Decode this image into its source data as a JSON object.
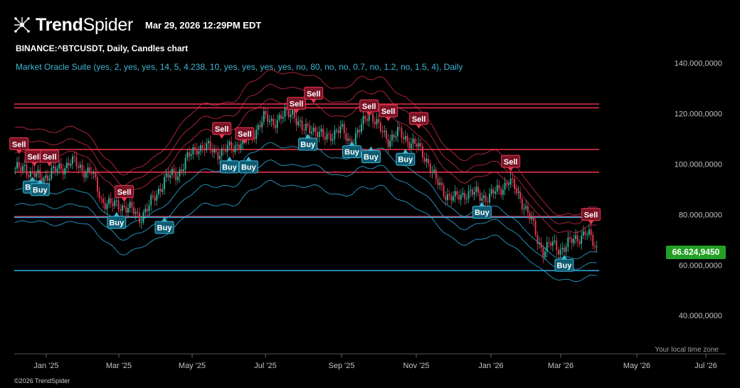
{
  "header": {
    "brand_bold": "Trend",
    "brand_light": "Spider",
    "timestamp": "Mar 29, 2026 12:29PM EDT",
    "symbol_line": "BINANCE:^BTCUSDT, Daily, Candles chart",
    "indicator_line": "Market Oracle Suite (yes, 2, yes, yes, 14, 5, 4.238, 10, yes, yes, yes, yes, no, 80, no, no, 0.7, no, 1.2, no, 1.5, 4), Daily"
  },
  "footer": {
    "timezone_label": "Your local time zone",
    "copyright": "©2026 TrendSpider"
  },
  "colors": {
    "background": "#000000",
    "up": "#2fb7a0",
    "down": "#e5394f",
    "resistance": "#e0304a",
    "support": "#2aa6d4",
    "price_badge": "#23a025"
  },
  "chart_data": {
    "type": "candlestick",
    "y_ticks": [
      "140.000,0000",
      "120.000,0000",
      "100.000,0000",
      "80.000,0000",
      "60.000,0000",
      "40.000,0000"
    ],
    "y_tick_values": [
      140000,
      120000,
      100000,
      80000,
      60000,
      40000
    ],
    "ylim": [
      35000,
      150000
    ],
    "x_ticks": [
      "Jan '25",
      "Mar '25",
      "May '25",
      "Jul '25",
      "Sep '25",
      "Nov '25",
      "Jan '26",
      "Mar '26",
      "May '26",
      "Jul '26"
    ],
    "last_price": "66.624,9450",
    "resistance_levels": [
      123800,
      122300,
      105800,
      96800,
      79200
    ],
    "support_levels": [
      78900,
      57800
    ],
    "close_path": [
      [
        0,
        97000
      ],
      [
        5,
        99500
      ],
      [
        8,
        96000
      ],
      [
        13,
        94500
      ],
      [
        18,
        96000
      ],
      [
        24,
        98500
      ],
      [
        29,
        101000
      ],
      [
        33,
        99000
      ],
      [
        40,
        96500
      ],
      [
        45,
        86000
      ],
      [
        50,
        83500
      ],
      [
        55,
        84000
      ],
      [
        62,
        81000
      ],
      [
        65,
        79000
      ],
      [
        70,
        83000
      ],
      [
        78,
        94000
      ],
      [
        85,
        96500
      ],
      [
        92,
        104000
      ],
      [
        95,
        107000
      ],
      [
        102,
        106000
      ],
      [
        108,
        104500
      ],
      [
        115,
        107500
      ],
      [
        123,
        111000
      ],
      [
        130,
        118000
      ],
      [
        134,
        117000
      ],
      [
        140,
        118500
      ],
      [
        145,
        121500
      ],
      [
        150,
        113000
      ],
      [
        155,
        115000
      ],
      [
        161,
        110000
      ],
      [
        165,
        112000
      ],
      [
        170,
        113500
      ],
      [
        176,
        108500
      ],
      [
        180,
        113000
      ],
      [
        185,
        121500
      ],
      [
        190,
        114000
      ],
      [
        195,
        110000
      ],
      [
        200,
        112000
      ],
      [
        205,
        110000
      ],
      [
        210,
        107000
      ],
      [
        216,
        101000
      ],
      [
        220,
        93000
      ],
      [
        225,
        88500
      ],
      [
        230,
        86000
      ],
      [
        236,
        89000
      ],
      [
        243,
        87500
      ],
      [
        248,
        87000
      ],
      [
        253,
        90000
      ],
      [
        258,
        93500
      ],
      [
        262,
        89000
      ],
      [
        266,
        84000
      ],
      [
        270,
        77000
      ],
      [
        273,
        70000
      ],
      [
        276,
        66000
      ],
      [
        280,
        68000
      ],
      [
        285,
        66500
      ],
      [
        290,
        68500
      ],
      [
        294,
        71000
      ],
      [
        298,
        73000
      ],
      [
        301,
        70000
      ],
      [
        304,
        66600
      ]
    ],
    "signals": [
      {
        "type": "Sell",
        "i": 2,
        "price": 104000
      },
      {
        "type": "Sell",
        "i": 10,
        "price": 99000
      },
      {
        "type": "Sell",
        "i": 18,
        "price": 99000
      },
      {
        "type": "Buy",
        "i": 9,
        "price": 95000
      },
      {
        "type": "Buy",
        "i": 13,
        "price": 94000
      },
      {
        "type": "Sell",
        "i": 57,
        "price": 85000
      },
      {
        "type": "Buy",
        "i": 53,
        "price": 81000
      },
      {
        "type": "Buy",
        "i": 78,
        "price": 79000
      },
      {
        "type": "Sell",
        "i": 108,
        "price": 110000
      },
      {
        "type": "Sell",
        "i": 120,
        "price": 108000
      },
      {
        "type": "Buy",
        "i": 112,
        "price": 103000
      },
      {
        "type": "Buy",
        "i": 122,
        "price": 103000
      },
      {
        "type": "Sell",
        "i": 147,
        "price": 120000
      },
      {
        "type": "Sell",
        "i": 156,
        "price": 124000
      },
      {
        "type": "Buy",
        "i": 153,
        "price": 112000
      },
      {
        "type": "Buy",
        "i": 176,
        "price": 109000
      },
      {
        "type": "Buy",
        "i": 186,
        "price": 107000
      },
      {
        "type": "Sell",
        "i": 185,
        "price": 119000
      },
      {
        "type": "Sell",
        "i": 195,
        "price": 117000
      },
      {
        "type": "Sell",
        "i": 211,
        "price": 114000
      },
      {
        "type": "Buy",
        "i": 204,
        "price": 106000
      },
      {
        "type": "Buy",
        "i": 244,
        "price": 85000
      },
      {
        "type": "Sell",
        "i": 259,
        "price": 97000
      },
      {
        "type": "Buy",
        "i": 287,
        "price": 64000
      },
      {
        "type": "Sell",
        "i": 301,
        "price": 76000
      }
    ]
  }
}
